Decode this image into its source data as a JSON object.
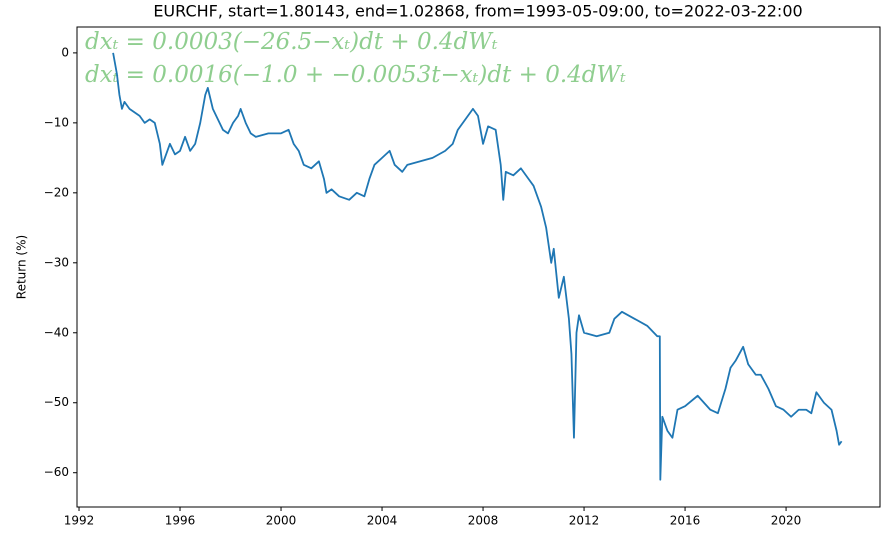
{
  "chart_data": {
    "type": "line",
    "title": "EURCHF, start=1.80143, end=1.02868, from=1993-05-09:00, to=2022-03-22:00",
    "ylabel": "Return (%)",
    "annotations": [
      "dxₜ = 0.0003(−26.5−xₜ)dt + 0.4dWₜ",
      "dxₜ = 0.0016(−1.0 + −0.0053t−xₜ)dt + 0.4dWₜ"
    ],
    "color": "#1f77b4",
    "x": [
      1993.35,
      1993.4,
      1993.5,
      1993.6,
      1993.7,
      1993.8,
      1994.0,
      1994.2,
      1994.4,
      1994.6,
      1994.8,
      1995.0,
      1995.2,
      1995.3,
      1995.4,
      1995.6,
      1995.8,
      1996.0,
      1996.2,
      1996.4,
      1996.6,
      1996.8,
      1997.0,
      1997.1,
      1997.3,
      1997.5,
      1997.7,
      1997.9,
      1998.1,
      1998.3,
      1998.4,
      1998.6,
      1998.8,
      1999.0,
      1999.5,
      2000.0,
      2000.3,
      2000.5,
      2000.7,
      2000.9,
      2001.2,
      2001.5,
      2001.7,
      2001.8,
      2002.0,
      2002.3,
      2002.7,
      2003.0,
      2003.3,
      2003.5,
      2003.7,
      2004.0,
      2004.3,
      2004.5,
      2004.8,
      2005.0,
      2005.5,
      2006.0,
      2006.5,
      2006.8,
      2007.0,
      2007.3,
      2007.6,
      2007.8,
      2008.0,
      2008.2,
      2008.5,
      2008.7,
      2008.8,
      2008.9,
      2009.2,
      2009.5,
      2009.8,
      2010.0,
      2010.3,
      2010.5,
      2010.7,
      2010.8,
      2011.0,
      2011.2,
      2011.4,
      2011.5,
      2011.6,
      2011.7,
      2011.8,
      2012.0,
      2012.5,
      2013.0,
      2013.2,
      2013.5,
      2014.0,
      2014.5,
      2014.9,
      2015.0,
      2015.02,
      2015.1,
      2015.3,
      2015.5,
      2015.7,
      2016.0,
      2016.5,
      2017.0,
      2017.3,
      2017.6,
      2017.8,
      2018.0,
      2018.3,
      2018.5,
      2018.8,
      2019.0,
      2019.3,
      2019.6,
      2019.9,
      2020.2,
      2020.5,
      2020.8,
      2021.0,
      2021.2,
      2021.5,
      2021.8,
      2022.0,
      2022.1,
      2022.2
    ],
    "values": [
      0,
      -1,
      -3,
      -6,
      -8,
      -7,
      -8,
      -8.5,
      -9,
      -10,
      -9.5,
      -10,
      -13,
      -16,
      -15,
      -13,
      -14.5,
      -14,
      -12,
      -14,
      -13,
      -10,
      -6,
      -5,
      -8,
      -9.5,
      -11,
      -11.5,
      -10,
      -9,
      -8,
      -10,
      -11.5,
      -12,
      -11.5,
      -11.5,
      -11,
      -13,
      -14,
      -16,
      -16.5,
      -15.5,
      -18,
      -20,
      -19.5,
      -20.5,
      -21,
      -20,
      -20.5,
      -18,
      -16,
      -15,
      -14,
      -16,
      -17,
      -16,
      -15.5,
      -15,
      -14,
      -13,
      -11,
      -9.5,
      -8,
      -9,
      -13,
      -10.5,
      -11,
      -16,
      -21,
      -17,
      -17.5,
      -16.5,
      -18,
      -19,
      -22,
      -25,
      -30,
      -28,
      -35,
      -32,
      -38,
      -43,
      -55,
      -40,
      -37.5,
      -40,
      -40.5,
      -40,
      -38,
      -37,
      -38,
      -39,
      -40.5,
      -40.5,
      -61,
      -52,
      -54,
      -55,
      -51,
      -50.5,
      -49,
      -51,
      -51.5,
      -48,
      -45,
      -44,
      -42,
      -44.5,
      -46,
      -46,
      -48,
      -50.5,
      -51,
      -52,
      -51,
      -51,
      -51.5,
      -48.5,
      -50,
      -51,
      -54,
      -56,
      -55.5
    ],
    "xlim": [
      1991.92,
      2023.72
    ],
    "ylim": [
      3.7,
      -64.9
    ],
    "xticks": [
      1992,
      1996,
      2000,
      2004,
      2008,
      2012,
      2016,
      2020
    ],
    "yticks": [
      0,
      {
        "value": -10,
        "label": "−10"
      },
      {
        "value": -20,
        "label": "−20"
      },
      {
        "value": -30,
        "label": "−30"
      },
      {
        "value": -40,
        "label": "−40"
      },
      {
        "value": -50,
        "label": "−50"
      },
      {
        "value": -60,
        "label": "−60"
      }
    ]
  }
}
